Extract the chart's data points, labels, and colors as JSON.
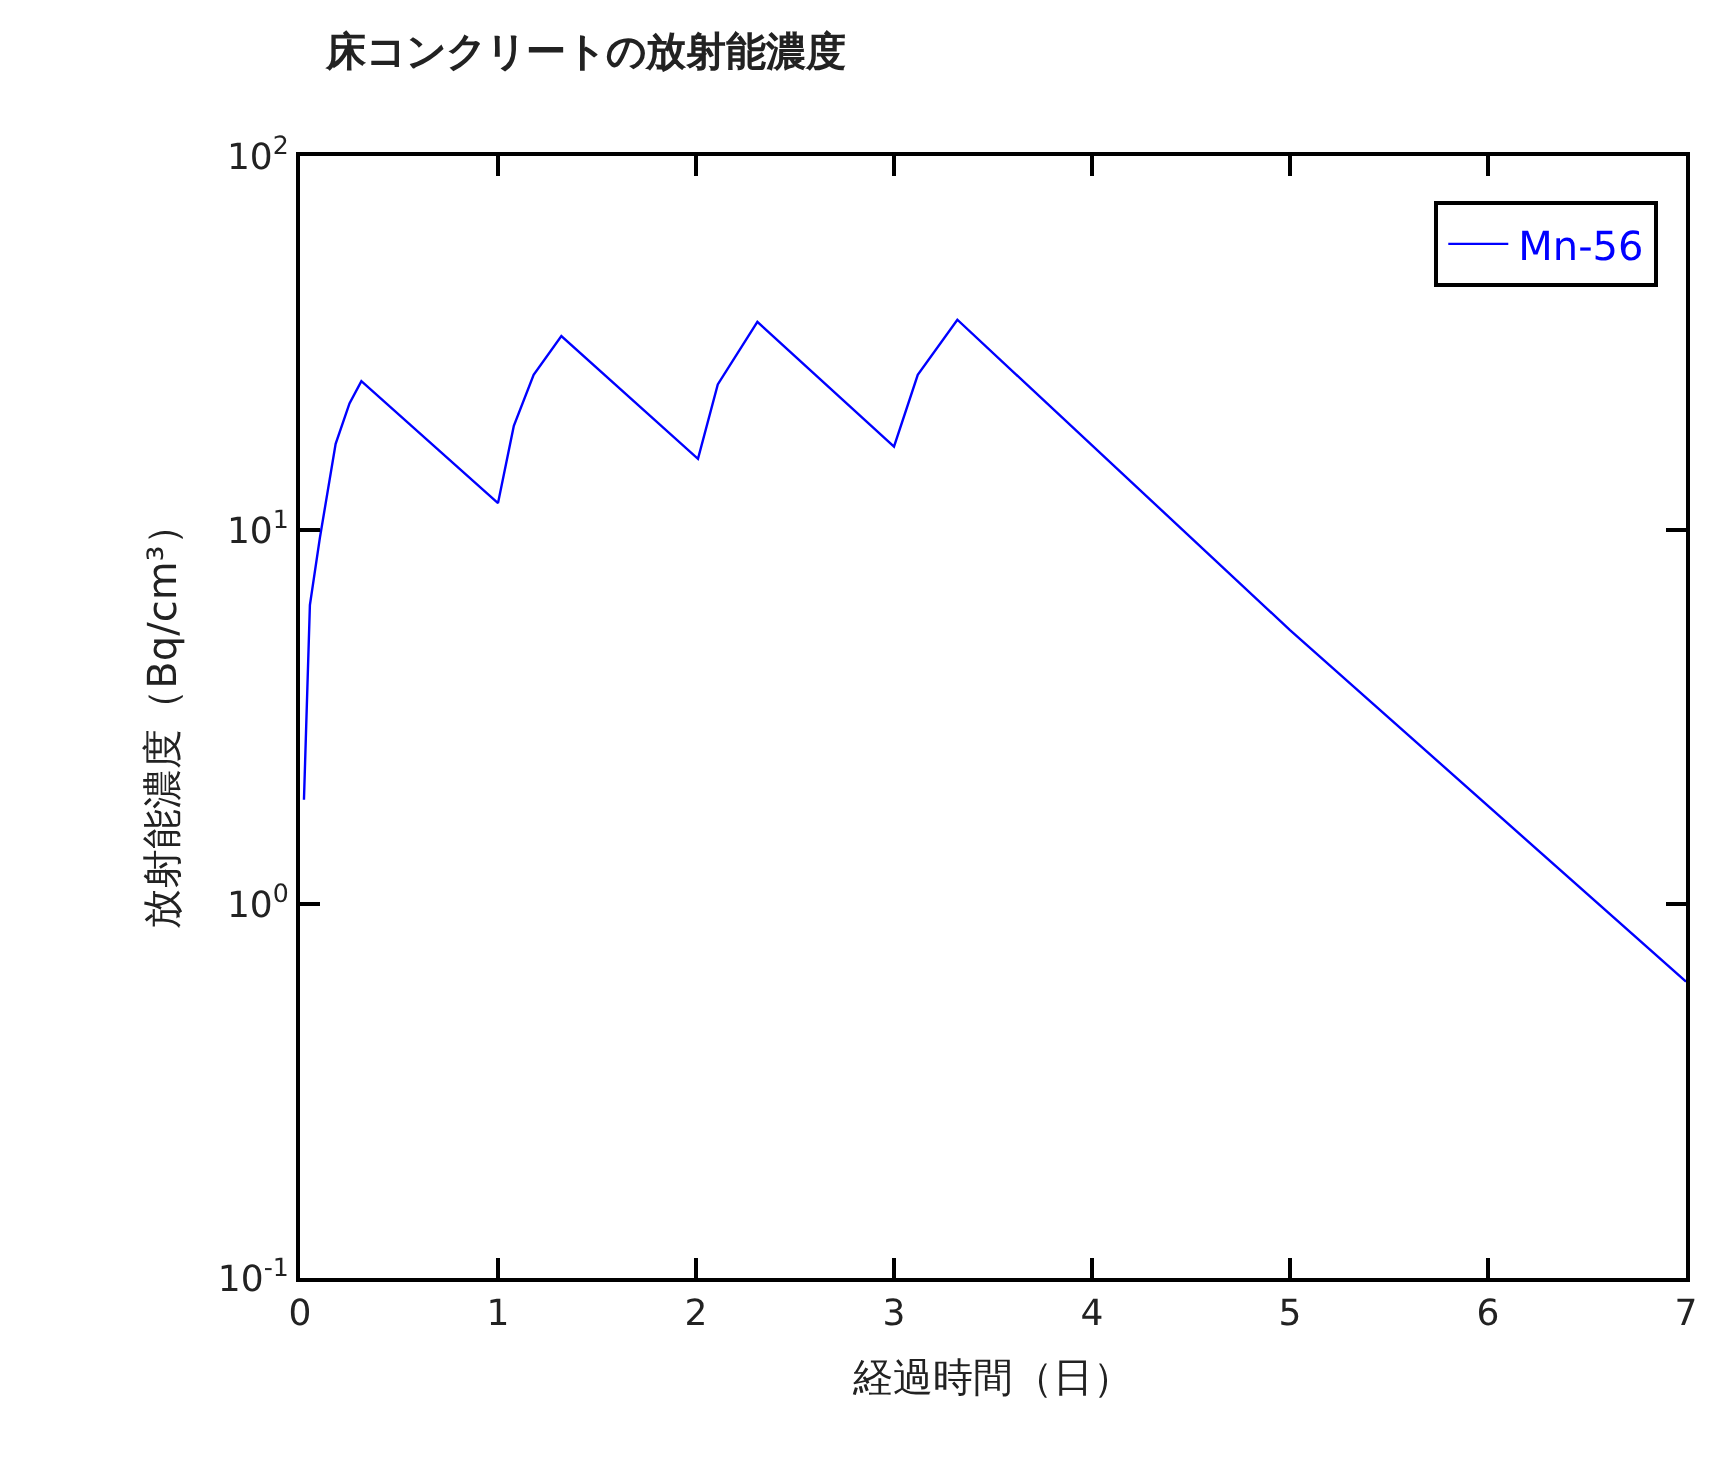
{
  "chart_data": {
    "type": "line",
    "title": "床コンクリートの放射能濃度",
    "xlabel": "経過時間（日）",
    "ylabel": "放射能濃度（Bq/cm³）",
    "x": [
      0.02,
      0.05,
      0.1,
      0.18,
      0.25,
      0.31,
      1.0,
      1.08,
      1.18,
      1.32,
      2.01,
      2.11,
      2.31,
      3.0,
      3.12,
      3.32,
      5.0,
      7.0
    ],
    "series": [
      {
        "name": "Mn-56",
        "color": "#0000ff",
        "values": [
          1.9,
          6.3,
          9.5,
          17,
          21.8,
          25,
          11.8,
          19,
          26,
          33,
          15.5,
          24.5,
          36,
          16.7,
          26,
          36.5,
          5.4,
          0.62
        ]
      }
    ],
    "log": "y",
    "xlim": [
      0,
      7
    ],
    "xticks": [
      0,
      1,
      2,
      3,
      4,
      5,
      6,
      7
    ],
    "ylim": [
      0.1,
      100
    ],
    "yticks": [
      {
        "value": 0.1,
        "label": "10$^{-1}$"
      },
      {
        "value": 1,
        "label": "10$^{0}$"
      },
      {
        "value": 10,
        "label": "10$^{1}$"
      },
      {
        "value": 100,
        "label": "10$^{2}$"
      }
    ],
    "legend": "top right",
    "marker": "none",
    "line_style": "solid"
  }
}
